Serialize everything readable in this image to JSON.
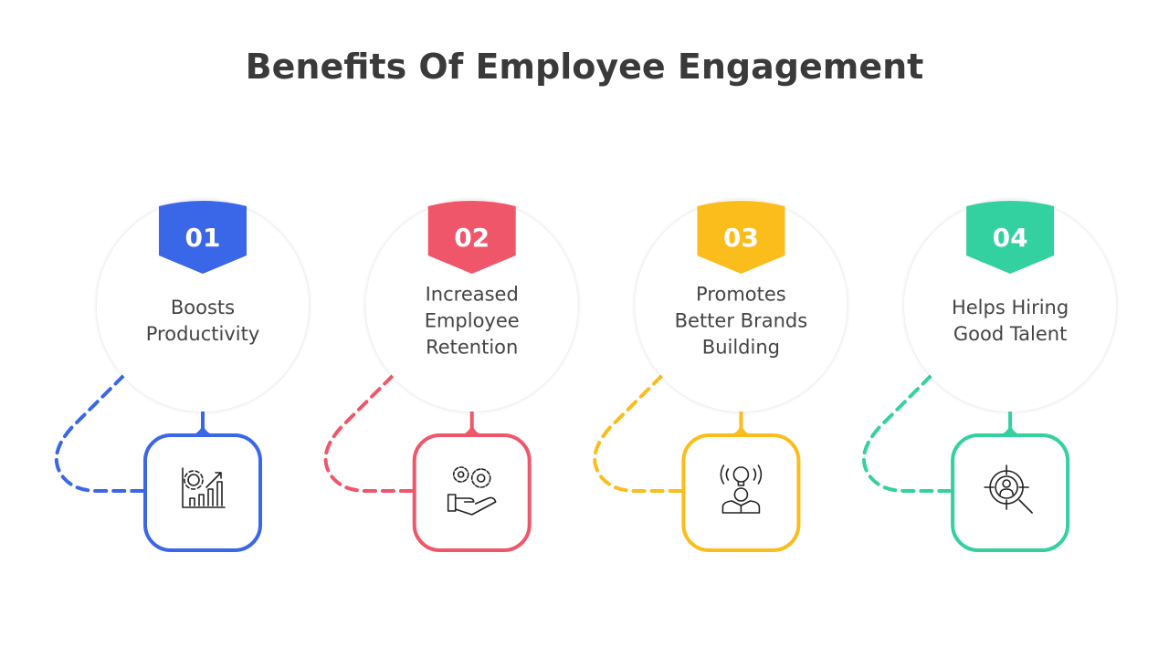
{
  "title": "Benefits Of Employee Engagement",
  "items": [
    {
      "number": "01",
      "lines": [
        "Boosts",
        "Productivity"
      ]
    },
    {
      "number": "02",
      "lines": [
        "Increased",
        "Employee",
        "Retention"
      ]
    },
    {
      "number": "03",
      "lines": [
        "Promotes",
        "Better Brands",
        "Building"
      ]
    },
    {
      "number": "04",
      "lines": [
        "Helps Hiring",
        "Good Talent"
      ]
    }
  ]
}
